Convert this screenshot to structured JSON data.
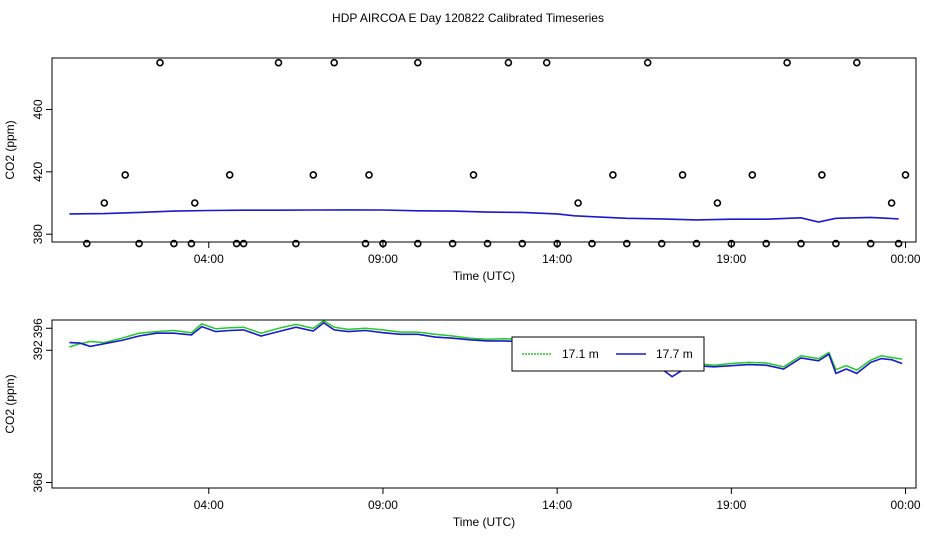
{
  "title": "HDP AIRCOA E  Day 120822  Calibrated Timeseries",
  "colors": {
    "green": "#22cc22",
    "blue": "#1a1acc"
  },
  "chart_data": [
    {
      "type": "scatter",
      "xlabel": "Time (UTC)",
      "ylabel": "CO2 (ppm)",
      "xlim": [
        -0.5,
        24.3
      ],
      "ylim": [
        375,
        493
      ],
      "xticks": [
        4,
        9,
        14,
        19,
        24
      ],
      "xtick_labels": [
        "04:00",
        "09:00",
        "14:00",
        "19:00",
        "00:00"
      ],
      "yticks": [
        380,
        420,
        460
      ],
      "yticklabels": [
        "380",
        "420",
        "460"
      ],
      "series": [
        {
          "color": "blue",
          "type": "line",
          "x": [
            0.0,
            1.0,
            2.0,
            3.0,
            4.0,
            5.0,
            6.0,
            7.0,
            8.0,
            9.0,
            10.0,
            11.0,
            12.0,
            13.0,
            14.0,
            14.5,
            15.0,
            16.0,
            17.0,
            18.0,
            19.0,
            20.0,
            21.0,
            21.5,
            22.0,
            23.0,
            23.8
          ],
          "y": [
            393,
            393.2,
            394,
            394.8,
            395.2,
            395.4,
            395.4,
            395.5,
            395.6,
            395.5,
            395,
            394.8,
            394.2,
            394,
            393,
            391.8,
            391.2,
            390.2,
            389.8,
            389.2,
            389.6,
            389.6,
            390.5,
            387.8,
            390.2,
            390.8,
            389.8
          ]
        },
        {
          "type": "points",
          "x": [
            0.5,
            2.0,
            3.0,
            3.5,
            4.8,
            5.0,
            6.5,
            8.5,
            9.0,
            10.0,
            11.0,
            12.0,
            13.0,
            14.0,
            15.0,
            16.0,
            17.0,
            18.0,
            19.0,
            20.0,
            21.0,
            22.0,
            23.0,
            23.8,
            1.0,
            1.6,
            2.6,
            3.6,
            4.6,
            6.0,
            7.0,
            7.6,
            8.6,
            10.0,
            11.6,
            12.6,
            13.7,
            14.6,
            15.6,
            16.6,
            17.6,
            18.6,
            19.6,
            20.6,
            21.6,
            22.6,
            23.6,
            24.0
          ],
          "y": [
            374,
            374,
            374,
            374,
            374,
            374,
            374,
            374,
            374,
            374,
            374,
            374,
            374,
            374,
            374,
            374,
            374,
            374,
            374,
            374,
            374,
            374,
            374,
            374,
            400,
            418,
            490,
            400,
            418,
            490,
            418,
            490,
            418,
            490,
            418,
            490,
            490,
            400,
            418,
            490,
            418,
            400,
            418,
            490,
            418,
            490,
            400,
            418
          ]
        }
      ]
    },
    {
      "type": "line",
      "xlabel": "Time (UTC)",
      "ylabel": "CO2 (ppm)",
      "xlim": [
        -0.5,
        24.3
      ],
      "ylim": [
        367,
        397.5
      ],
      "xticks": [
        4,
        9,
        14,
        19,
        24
      ],
      "xtick_labels": [
        "04:00",
        "09:00",
        "14:00",
        "19:00",
        "00:00"
      ],
      "yticks": [
        368,
        392,
        396
      ],
      "yticklabels": [
        "368",
        "392",
        "396"
      ],
      "legend": {
        "position": "top-right",
        "entries": [
          "17.1 m",
          "17.7 m"
        ]
      },
      "series": [
        {
          "name": "17.1 m",
          "color": "green",
          "x": [
            0.0,
            0.3,
            0.6,
            1.0,
            1.5,
            2.0,
            2.5,
            3.0,
            3.5,
            3.8,
            4.2,
            4.6,
            5.0,
            5.5,
            6.0,
            6.5,
            7.0,
            7.3,
            7.6,
            8.0,
            8.5,
            9.0,
            9.5,
            10.0,
            10.5,
            11.0,
            11.5,
            12.0,
            12.5,
            13.0,
            13.5,
            14.0,
            14.3,
            14.6,
            15.0,
            15.3,
            15.6,
            16.0,
            16.5,
            17.0,
            17.3,
            17.6,
            18.0,
            18.5,
            19.0,
            19.5,
            20.0,
            20.5,
            21.0,
            21.5,
            21.8,
            22.0,
            22.3,
            22.6,
            23.0,
            23.3,
            23.6,
            23.9
          ],
          "y": [
            392.6,
            393.2,
            393.6,
            393.4,
            394.2,
            395.1,
            395.4,
            395.6,
            395.2,
            396.8,
            395.9,
            396.1,
            396.2,
            395.1,
            396.0,
            396.7,
            396.0,
            397.4,
            396.2,
            395.8,
            396.0,
            395.7,
            395.3,
            395.3,
            394.9,
            394.6,
            394.2,
            394.0,
            394.1,
            393.9,
            393.6,
            393.8,
            392.6,
            391.9,
            391.2,
            391.4,
            391.0,
            390.2,
            389.6,
            389.0,
            388.6,
            388.8,
            389.6,
            389.3,
            389.6,
            389.8,
            389.7,
            389.0,
            391.0,
            390.5,
            391.6,
            388.5,
            389.2,
            388.4,
            390.2,
            391.0,
            390.7,
            390.4
          ]
        },
        {
          "name": "17.7 m",
          "color": "blue",
          "x": [
            0.0,
            0.3,
            0.6,
            1.0,
            1.5,
            2.0,
            2.5,
            3.0,
            3.5,
            3.8,
            4.2,
            4.6,
            5.0,
            5.5,
            6.0,
            6.5,
            7.0,
            7.3,
            7.6,
            8.0,
            8.5,
            9.0,
            9.5,
            10.0,
            10.5,
            11.0,
            11.5,
            12.0,
            12.5,
            13.0,
            13.5,
            14.0,
            14.3,
            14.6,
            15.0,
            15.3,
            15.6,
            16.0,
            16.5,
            17.0,
            17.3,
            17.6,
            18.0,
            18.5,
            19.0,
            19.5,
            20.0,
            20.5,
            21.0,
            21.5,
            21.8,
            22.0,
            22.3,
            22.6,
            23.0,
            23.3,
            23.6,
            23.9
          ],
          "y": [
            393.4,
            393.3,
            392.7,
            393.2,
            393.8,
            394.6,
            395.1,
            395.1,
            394.8,
            396.3,
            395.4,
            395.6,
            395.7,
            394.6,
            395.4,
            396.2,
            395.5,
            397.0,
            395.7,
            395.4,
            395.6,
            395.2,
            394.9,
            394.9,
            394.4,
            394.2,
            393.9,
            393.7,
            393.7,
            393.5,
            393.2,
            393.3,
            392.1,
            391.3,
            390.8,
            390.9,
            390.5,
            389.8,
            389.2,
            388.6,
            387.2,
            388.4,
            389.2,
            389.0,
            389.2,
            389.4,
            389.3,
            388.6,
            390.6,
            390.1,
            391.3,
            387.8,
            388.6,
            387.8,
            389.8,
            390.5,
            390.3,
            389.6
          ]
        }
      ]
    }
  ]
}
